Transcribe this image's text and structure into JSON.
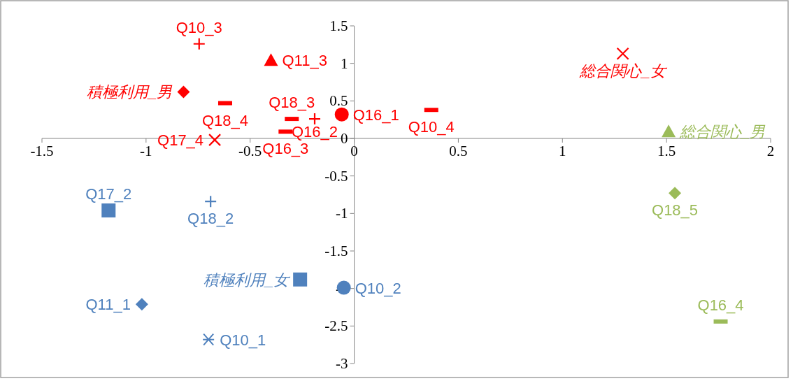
{
  "chart_data": {
    "type": "scatter",
    "xlim": [
      -1.5,
      2
    ],
    "ylim": [
      -3,
      1.5
    ],
    "xticks": [
      -1.5,
      -1,
      -0.5,
      0,
      0.5,
      1,
      1.5,
      2
    ],
    "yticks": [
      -3,
      -2.5,
      -2,
      -1.5,
      -1,
      -0.5,
      0,
      0.5,
      1,
      1.5
    ],
    "grid": false,
    "series": [
      {
        "name": "Q10_3",
        "color": "#ff0000",
        "marker": "cross",
        "x": [
          -0.745
        ],
        "values": [
          1.26
        ]
      },
      {
        "name": "Q11_3",
        "color": "#ff0000",
        "marker": "triangle",
        "x": [
          -0.4
        ],
        "values": [
          1.04
        ]
      },
      {
        "name": "積極利用_男",
        "color": "#ff0000",
        "marker": "diamond",
        "x": [
          -0.82
        ],
        "values": [
          0.62
        ]
      },
      {
        "name": "Q18_4",
        "color": "#ff0000",
        "marker": "square",
        "x": [
          -0.62
        ],
        "values": [
          0.47
        ]
      },
      {
        "name": "Q18_3",
        "color": "#ff0000",
        "marker": "square",
        "x": [
          -0.3
        ],
        "values": [
          0.26
        ]
      },
      {
        "name": "Q16_3",
        "color": "#ff0000",
        "marker": "square",
        "x": [
          -0.33
        ],
        "values": [
          0.09
        ]
      },
      {
        "name": "Q16_2",
        "color": "#ff0000",
        "marker": "cross",
        "x": [
          -0.19
        ],
        "values": [
          0.26
        ]
      },
      {
        "name": "Q16_1",
        "color": "#ff0000",
        "marker": "circle",
        "x": [
          -0.06
        ],
        "values": [
          0.32
        ]
      },
      {
        "name": "Q10_4",
        "color": "#ff0000",
        "marker": "square",
        "x": [
          0.37
        ],
        "values": [
          0.38
        ]
      },
      {
        "name": "Q17_4",
        "color": "#ff0000",
        "marker": "cross",
        "x": [
          -0.67
        ],
        "values": [
          -0.02
        ]
      },
      {
        "name": "総合関心_女",
        "color": "#ff0000",
        "marker": "cross",
        "x": [
          1.29
        ],
        "values": [
          1.13
        ]
      },
      {
        "name": "総合関心_男",
        "color": "#9bbb59",
        "marker": "triangle",
        "x": [
          1.51
        ],
        "values": [
          0.09
        ]
      },
      {
        "name": "Q18_5",
        "color": "#9bbb59",
        "marker": "diamond",
        "x": [
          1.54
        ],
        "values": [
          -0.73
        ]
      },
      {
        "name": "Q16_4",
        "color": "#9bbb59",
        "marker": "square",
        "x": [
          1.76
        ],
        "values": [
          -2.44
        ]
      },
      {
        "name": "Q17_2",
        "color": "#4f81bd",
        "marker": "square",
        "x": [
          -1.18
        ],
        "values": [
          -0.96
        ]
      },
      {
        "name": "Q18_2",
        "color": "#4f81bd",
        "marker": "cross",
        "x": [
          -0.69
        ],
        "values": [
          -0.84
        ]
      },
      {
        "name": "積極利用_女",
        "color": "#4f81bd",
        "marker": "square",
        "x": [
          -0.26
        ],
        "values": [
          -1.88
        ]
      },
      {
        "name": "Q10_2",
        "color": "#4f81bd",
        "marker": "circle",
        "x": [
          -0.05
        ],
        "values": [
          -1.99
        ]
      },
      {
        "name": "Q11_1",
        "color": "#4f81bd",
        "marker": "diamond",
        "x": [
          -1.02
        ],
        "values": [
          -2.21
        ]
      },
      {
        "name": "Q10_1",
        "color": "#4f81bd",
        "marker": "cross",
        "x": [
          -0.7
        ],
        "values": [
          -2.68
        ]
      }
    ]
  }
}
